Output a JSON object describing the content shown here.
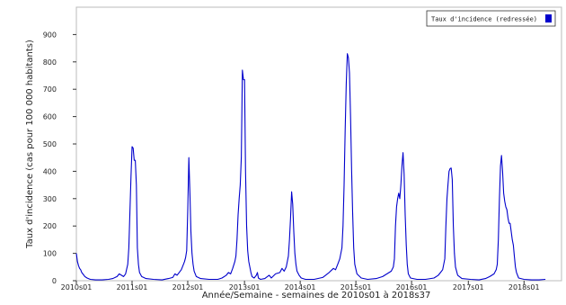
{
  "chart_data": {
    "type": "line",
    "title": "",
    "xlabel": "Année/Semaine - semaines de 2010s01 à 2018s37",
    "ylabel": "Taux d'incidence (cas pour 100 000 habitants)",
    "ylim": [
      0,
      1000
    ],
    "yticks": [
      0,
      100,
      200,
      300,
      400,
      500,
      600,
      700,
      800,
      900
    ],
    "xlim": [
      0,
      453
    ],
    "xticks": [
      {
        "label": "2010s01",
        "week": 0
      },
      {
        "label": "2011s01",
        "week": 52
      },
      {
        "label": "2012s01",
        "week": 104
      },
      {
        "label": "2013s01",
        "week": 157
      },
      {
        "label": "2014s01",
        "week": 209
      },
      {
        "label": "2015s01",
        "week": 261
      },
      {
        "label": "2016s01",
        "week": 313
      },
      {
        "label": "2017s01",
        "week": 366
      },
      {
        "label": "2018s01",
        "week": 418
      }
    ],
    "grid": false,
    "legend": "top-right",
    "series": [
      {
        "name": "Taux d'incidence (redressée)",
        "color": "#0000cc",
        "points": [
          [
            0,
            100
          ],
          [
            1,
            70
          ],
          [
            2,
            55
          ],
          [
            3,
            45
          ],
          [
            4,
            40
          ],
          [
            5,
            30
          ],
          [
            6,
            25
          ],
          [
            8,
            15
          ],
          [
            10,
            10
          ],
          [
            13,
            5
          ],
          [
            18,
            3
          ],
          [
            24,
            3
          ],
          [
            30,
            5
          ],
          [
            34,
            8
          ],
          [
            38,
            15
          ],
          [
            40,
            25
          ],
          [
            42,
            20
          ],
          [
            44,
            15
          ],
          [
            46,
            25
          ],
          [
            48,
            60
          ],
          [
            49,
            120
          ],
          [
            50,
            250
          ],
          [
            51,
            380
          ],
          [
            52,
            490
          ],
          [
            53,
            485
          ],
          [
            54,
            440
          ],
          [
            55,
            440
          ],
          [
            56,
            350
          ],
          [
            57,
            120
          ],
          [
            58,
            60
          ],
          [
            59,
            30
          ],
          [
            61,
            15
          ],
          [
            65,
            8
          ],
          [
            72,
            5
          ],
          [
            80,
            3
          ],
          [
            86,
            8
          ],
          [
            90,
            12
          ],
          [
            92,
            25
          ],
          [
            94,
            20
          ],
          [
            96,
            30
          ],
          [
            98,
            40
          ],
          [
            100,
            60
          ],
          [
            101,
            70
          ],
          [
            102,
            85
          ],
          [
            103,
            110
          ],
          [
            104,
            260
          ],
          [
            105,
            450
          ],
          [
            106,
            320
          ],
          [
            107,
            180
          ],
          [
            108,
            100
          ],
          [
            109,
            60
          ],
          [
            110,
            35
          ],
          [
            112,
            15
          ],
          [
            116,
            8
          ],
          [
            124,
            5
          ],
          [
            132,
            5
          ],
          [
            136,
            10
          ],
          [
            140,
            20
          ],
          [
            142,
            30
          ],
          [
            144,
            25
          ],
          [
            146,
            45
          ],
          [
            148,
            70
          ],
          [
            149,
            90
          ],
          [
            150,
            150
          ],
          [
            151,
            240
          ],
          [
            152,
            300
          ],
          [
            153,
            350
          ],
          [
            154,
            450
          ],
          [
            155,
            770
          ],
          [
            156,
            735
          ],
          [
            157,
            735
          ],
          [
            158,
            400
          ],
          [
            159,
            200
          ],
          [
            160,
            110
          ],
          [
            161,
            70
          ],
          [
            162,
            50
          ],
          [
            163,
            30
          ],
          [
            164,
            15
          ],
          [
            166,
            10
          ],
          [
            168,
            20
          ],
          [
            169,
            30
          ],
          [
            170,
            10
          ],
          [
            172,
            5
          ],
          [
            176,
            8
          ],
          [
            180,
            20
          ],
          [
            182,
            10
          ],
          [
            186,
            25
          ],
          [
            190,
            30
          ],
          [
            192,
            45
          ],
          [
            194,
            35
          ],
          [
            196,
            50
          ],
          [
            198,
            90
          ],
          [
            199,
            150
          ],
          [
            200,
            230
          ],
          [
            201,
            325
          ],
          [
            202,
            280
          ],
          [
            203,
            180
          ],
          [
            204,
            100
          ],
          [
            205,
            60
          ],
          [
            206,
            35
          ],
          [
            208,
            20
          ],
          [
            210,
            10
          ],
          [
            214,
            5
          ],
          [
            222,
            5
          ],
          [
            230,
            12
          ],
          [
            236,
            30
          ],
          [
            240,
            45
          ],
          [
            242,
            40
          ],
          [
            244,
            60
          ],
          [
            246,
            80
          ],
          [
            248,
            120
          ],
          [
            249,
            200
          ],
          [
            250,
            350
          ],
          [
            251,
            550
          ],
          [
            252,
            720
          ],
          [
            253,
            830
          ],
          [
            254,
            815
          ],
          [
            255,
            760
          ],
          [
            256,
            600
          ],
          [
            257,
            400
          ],
          [
            258,
            250
          ],
          [
            259,
            120
          ],
          [
            260,
            60
          ],
          [
            262,
            25
          ],
          [
            266,
            10
          ],
          [
            272,
            5
          ],
          [
            280,
            8
          ],
          [
            286,
            15
          ],
          [
            290,
            25
          ],
          [
            292,
            30
          ],
          [
            294,
            35
          ],
          [
            296,
            50
          ],
          [
            297,
            80
          ],
          [
            298,
            200
          ],
          [
            299,
            270
          ],
          [
            300,
            300
          ],
          [
            301,
            320
          ],
          [
            302,
            300
          ],
          [
            303,
            350
          ],
          [
            304,
            420
          ],
          [
            305,
            468
          ],
          [
            306,
            390
          ],
          [
            307,
            240
          ],
          [
            308,
            130
          ],
          [
            309,
            60
          ],
          [
            310,
            25
          ],
          [
            312,
            10
          ],
          [
            318,
            5
          ],
          [
            326,
            5
          ],
          [
            334,
            10
          ],
          [
            338,
            20
          ],
          [
            340,
            30
          ],
          [
            342,
            40
          ],
          [
            344,
            80
          ],
          [
            345,
            200
          ],
          [
            346,
            300
          ],
          [
            347,
            350
          ],
          [
            348,
            400
          ],
          [
            349,
            410
          ],
          [
            350,
            412
          ],
          [
            351,
            370
          ],
          [
            352,
            200
          ],
          [
            353,
            100
          ],
          [
            354,
            50
          ],
          [
            356,
            20
          ],
          [
            360,
            8
          ],
          [
            368,
            5
          ],
          [
            376,
            3
          ],
          [
            382,
            8
          ],
          [
            386,
            15
          ],
          [
            388,
            20
          ],
          [
            390,
            25
          ],
          [
            392,
            40
          ],
          [
            393,
            60
          ],
          [
            394,
            150
          ],
          [
            395,
            300
          ],
          [
            396,
            420
          ],
          [
            397,
            458
          ],
          [
            398,
            400
          ],
          [
            399,
            320
          ],
          [
            400,
            290
          ],
          [
            401,
            270
          ],
          [
            402,
            260
          ],
          [
            403,
            230
          ],
          [
            404,
            210
          ],
          [
            405,
            210
          ],
          [
            406,
            180
          ],
          [
            407,
            150
          ],
          [
            408,
            130
          ],
          [
            409,
            90
          ],
          [
            410,
            50
          ],
          [
            411,
            30
          ],
          [
            413,
            10
          ],
          [
            418,
            5
          ],
          [
            425,
            3
          ],
          [
            432,
            3
          ],
          [
            438,
            5
          ]
        ]
      }
    ]
  }
}
